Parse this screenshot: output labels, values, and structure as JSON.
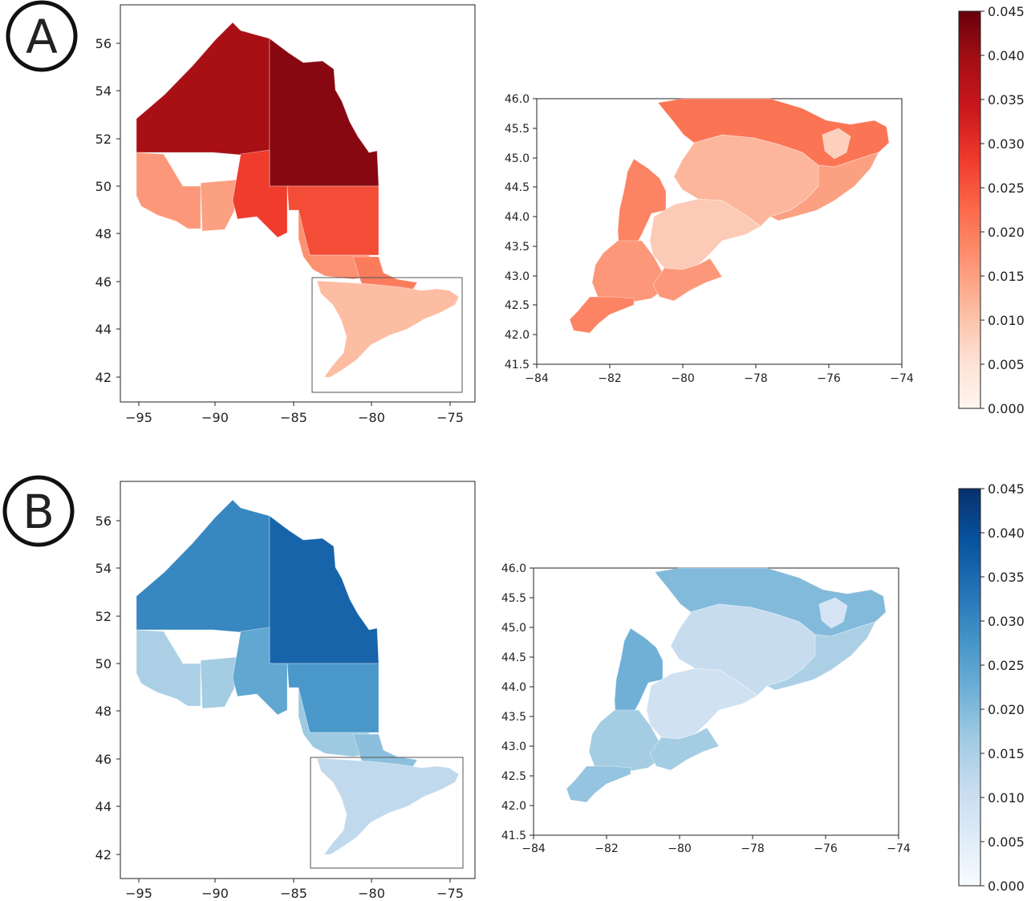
{
  "panels": [
    {
      "id": "A",
      "label": "A",
      "color_scale": "Reds",
      "ramp": [
        "#fff5f0",
        "#fee0d2",
        "#fcbba1",
        "#fc9272",
        "#fb6a4a",
        "#ef3b2c",
        "#cb181d",
        "#a50f15",
        "#67000d"
      ],
      "province_map": {
        "x_ticks": [
          "−95",
          "−90",
          "−85",
          "−80",
          "−75"
        ],
        "y_ticks": [
          "42",
          "44",
          "46",
          "48",
          "50",
          "52",
          "54",
          "56"
        ],
        "regions": {
          "far_north_west": 0.039,
          "far_north_east": 0.042,
          "northwest_south": 0.016,
          "northwest_middle": 0.015,
          "thunder_bay": 0.028,
          "cochrane_south": 0.026,
          "sudbury": 0.017,
          "nipissing": 0.02,
          "southern_ontario": 0.011
        }
      },
      "inset_map": {
        "x_ticks": [
          "−84",
          "−82",
          "−80",
          "−78",
          "−76",
          "−74"
        ],
        "y_ticks": [
          "41.5",
          "42.0",
          "42.5",
          "43.0",
          "43.5",
          "44.0",
          "44.5",
          "45.0",
          "45.5",
          "46.0"
        ],
        "regions": {
          "north_band": 0.021,
          "bruce_grey": 0.019,
          "southwest": 0.016,
          "essex": 0.019,
          "golden_horseshoe": 0.009,
          "central": 0.012,
          "eastern": 0.015,
          "ottawa": 0.008
        }
      },
      "colorbar": {
        "min": 0,
        "max": 0.045,
        "ticks": [
          "0.000",
          "0.005",
          "0.010",
          "0.015",
          "0.020",
          "0.025",
          "0.030",
          "0.035",
          "0.040",
          "0.045"
        ]
      }
    },
    {
      "id": "B",
      "label": "B",
      "color_scale": "Blues",
      "ramp": [
        "#f7fbff",
        "#deebf7",
        "#c6dbef",
        "#9ecae1",
        "#6baed6",
        "#4292c6",
        "#2171b5",
        "#08519c",
        "#08306b"
      ],
      "province_map": {
        "x_ticks": [
          "−95",
          "−90",
          "−85",
          "−80",
          "−75"
        ],
        "y_ticks": [
          "42",
          "44",
          "46",
          "48",
          "50",
          "52",
          "54",
          "56"
        ],
        "regions": {
          "far_north_west": 0.03,
          "far_north_east": 0.036,
          "northwest_south": 0.015,
          "northwest_middle": 0.016,
          "thunder_bay": 0.024,
          "cochrane_south": 0.027,
          "sudbury": 0.017,
          "nipissing": 0.019,
          "southern_ontario": 0.012
        }
      },
      "inset_map": {
        "x_ticks": [
          "−84",
          "−82",
          "−80",
          "−78",
          "−76",
          "−74"
        ],
        "y_ticks": [
          "41.5",
          "42.0",
          "42.5",
          "43.0",
          "43.5",
          "44.0",
          "44.5",
          "45.0",
          "45.5",
          "46.0"
        ],
        "regions": {
          "north_band": 0.02,
          "bruce_grey": 0.022,
          "southwest": 0.016,
          "essex": 0.018,
          "golden_horseshoe": 0.009,
          "central": 0.011,
          "eastern": 0.015,
          "ottawa": 0.008
        }
      },
      "colorbar": {
        "min": 0,
        "max": 0.045,
        "ticks": [
          "0.000",
          "0.005",
          "0.010",
          "0.015",
          "0.020",
          "0.025",
          "0.030",
          "0.035",
          "0.040",
          "0.045"
        ]
      }
    }
  ]
}
